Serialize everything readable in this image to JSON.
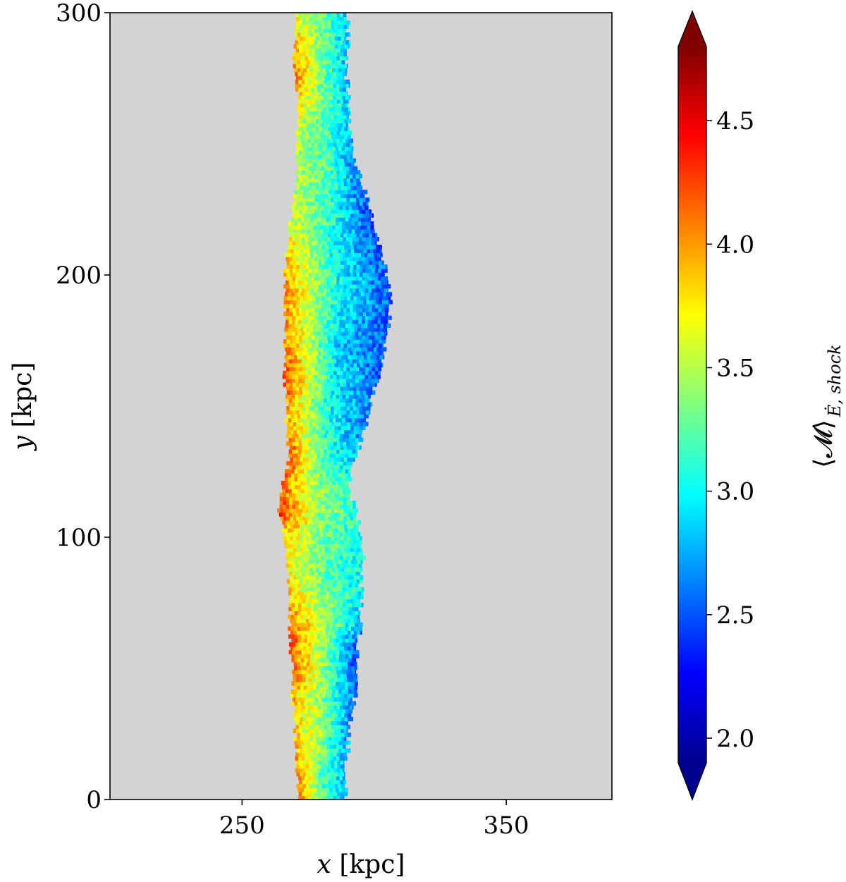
{
  "chart_data": {
    "type": "heatmap",
    "xlabel": {
      "var": "x",
      "unit": "[kpc]"
    },
    "ylabel": {
      "var": "y",
      "unit": "[kpc]"
    },
    "xlim": [
      200,
      390
    ],
    "ylim": [
      0,
      300
    ],
    "xticks": [
      250,
      350
    ],
    "yticks": [
      0,
      100,
      200,
      300
    ],
    "background_color": "#d3d3d3",
    "colormap": "jet",
    "colorbar": {
      "label_main": "⟨𝓜⟩",
      "label_sub": "Ė, shock",
      "range": [
        1.9,
        4.8
      ],
      "ticks": [
        "2.0",
        "2.5",
        "3.0",
        "3.5",
        "4.0",
        "4.5"
      ],
      "extend": "both"
    },
    "profile": {
      "y": [
        0,
        10,
        20,
        30,
        40,
        50,
        60,
        70,
        80,
        90,
        100,
        110,
        120,
        130,
        140,
        150,
        160,
        170,
        180,
        190,
        200,
        210,
        220,
        230,
        240,
        250,
        260,
        270,
        280,
        290,
        300
      ],
      "x_left": [
        271,
        271,
        270,
        270,
        269,
        269,
        268,
        268,
        268,
        267,
        266,
        264,
        265,
        268,
        267,
        267,
        266,
        266,
        266,
        266,
        266,
        267,
        268,
        270,
        271,
        271,
        271,
        271,
        269,
        270,
        270
      ],
      "x_right": [
        289,
        289,
        290,
        291,
        293,
        294,
        294,
        295,
        295,
        296,
        295,
        293,
        290,
        293,
        296,
        298,
        301,
        304,
        305,
        306,
        305,
        302,
        300,
        297,
        294,
        291,
        290,
        290,
        289,
        290,
        290
      ],
      "value_left": [
        4.0,
        4.0,
        3.9,
        3.8,
        3.9,
        4.1,
        4.2,
        4.0,
        3.8,
        3.7,
        3.8,
        4.3,
        4.1,
        4.2,
        4.0,
        3.9,
        4.2,
        4.1,
        4.0,
        4.0,
        4.0,
        3.8,
        3.6,
        3.5,
        3.5,
        3.5,
        3.6,
        3.9,
        4.1,
        3.8,
        3.6
      ],
      "value_center": [
        3.2,
        3.2,
        3.3,
        3.4,
        3.3,
        3.3,
        3.4,
        3.4,
        3.3,
        3.2,
        3.3,
        3.4,
        3.4,
        3.2,
        3.1,
        3.0,
        3.0,
        2.9,
        2.9,
        3.0,
        3.0,
        3.0,
        3.1,
        3.1,
        3.2,
        3.2,
        3.2,
        3.3,
        3.3,
        3.3,
        3.3
      ],
      "value_right": [
        2.8,
        2.8,
        2.7,
        2.6,
        2.5,
        2.4,
        2.5,
        2.8,
        3.0,
        3.0,
        3.0,
        3.1,
        3.1,
        2.8,
        2.6,
        2.6,
        2.5,
        2.5,
        2.5,
        2.5,
        2.5,
        2.5,
        2.4,
        2.5,
        2.6,
        2.7,
        2.8,
        2.8,
        2.8,
        2.8,
        2.8
      ]
    }
  }
}
